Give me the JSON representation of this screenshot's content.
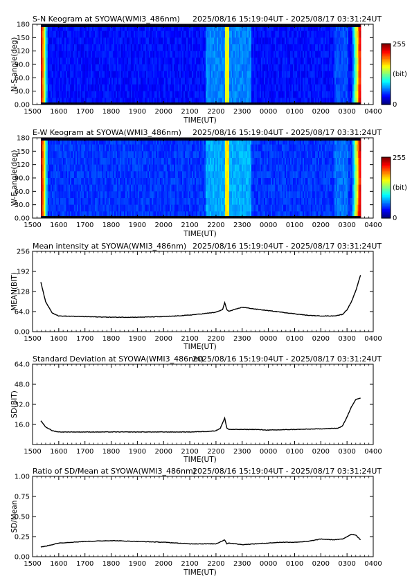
{
  "chart_data": [
    {
      "type": "heatmap",
      "title": "S-N Keogram at SYOWA(WMI3_486nm)",
      "time_range": "2025/08/16 15:19:04UT - 2025/08/17 03:31:24UT",
      "xlabel": "TIME(UT)",
      "ylabel": "N-S angle(deg)",
      "x_ticks": [
        "1500",
        "1600",
        "1700",
        "1800",
        "1900",
        "2000",
        "2100",
        "2200",
        "2300",
        "0000",
        "0100",
        "0200",
        "0300",
        "0400"
      ],
      "y_ticks": [
        "0.00",
        "30.0",
        "60.0",
        "90.0",
        "120",
        "150",
        "180"
      ],
      "ylim": [
        0,
        180
      ],
      "colorbar": {
        "max_label": "255",
        "unit_label": "(bit)",
        "min_label": "0"
      },
      "features": {
        "data_start": "15:19",
        "data_end": "03:31",
        "background_level": 35,
        "bright_band_times": [
          "22:20",
          "22:25"
        ],
        "twilight_edges": [
          "15:19",
          "03:31"
        ]
      }
    },
    {
      "type": "heatmap",
      "title": "E-W Keogram at SYOWA(WMI3_486nm)",
      "time_range": "2025/08/16 15:19:04UT - 2025/08/17 03:31:24UT",
      "xlabel": "TIME(UT)",
      "ylabel": "W-E angle(deg)",
      "x_ticks": [
        "1500",
        "1600",
        "1700",
        "1800",
        "1900",
        "2000",
        "2100",
        "2200",
        "2300",
        "0000",
        "0100",
        "0200",
        "0300",
        "0400"
      ],
      "y_ticks": [
        "0.00",
        "30.0",
        "60.0",
        "90.0",
        "120",
        "150",
        "180"
      ],
      "ylim": [
        0,
        180
      ],
      "colorbar": {
        "max_label": "255",
        "unit_label": "(bit)",
        "min_label": "0"
      },
      "features": {
        "data_start": "15:19",
        "data_end": "03:31",
        "background_level": 45,
        "bright_band_times": [
          "22:20",
          "22:25"
        ],
        "twilight_edges": [
          "15:19",
          "03:31"
        ]
      }
    },
    {
      "type": "line",
      "title": "Mean intensity at SYOWA(WMI3_486nm)",
      "time_range": "2025/08/16 15:19:04UT - 2025/08/17 03:31:24UT",
      "xlabel": "TIME(UT)",
      "ylabel": "MEAN(BIT)",
      "x_ticks": [
        "1500",
        "1600",
        "1700",
        "1800",
        "1900",
        "2000",
        "2100",
        "2200",
        "2300",
        "0000",
        "0100",
        "0200",
        "0300",
        "0400"
      ],
      "y_ticks": [
        "0.00",
        "64.0",
        "128",
        "192",
        "256"
      ],
      "ylim": [
        0,
        256
      ],
      "series": [
        {
          "x": [
            "15:19",
            "15:30",
            "15:45",
            "16:00",
            "16:30",
            "17:00",
            "18:00",
            "19:00",
            "20:00",
            "20:30",
            "21:00",
            "21:30",
            "22:00",
            "22:15",
            "22:20",
            "22:25",
            "22:30",
            "23:00",
            "23:30",
            "00:00",
            "00:30",
            "01:00",
            "01:30",
            "02:00",
            "02:30",
            "02:50",
            "03:00",
            "03:10",
            "03:20",
            "03:31"
          ],
          "y": [
            158,
            95,
            60,
            50,
            49,
            48,
            46,
            46,
            48,
            50,
            53,
            57,
            62,
            70,
            92,
            70,
            65,
            78,
            72,
            67,
            62,
            57,
            52,
            50,
            50,
            55,
            70,
            95,
            130,
            180
          ]
        }
      ]
    },
    {
      "type": "line",
      "title": "Standard Deviation at SYOWA(WMI3_486nm)",
      "time_range": "2025/08/16 15:19:04UT - 2025/08/17 03:31:24UT",
      "xlabel": "TIME(UT)",
      "ylabel": "SD(BIT)",
      "x_ticks": [
        "1500",
        "1600",
        "1700",
        "1800",
        "1900",
        "2000",
        "2100",
        "2200",
        "2300",
        "0000",
        "0100",
        "0200",
        "0300",
        "0400"
      ],
      "y_ticks": [
        "16.0",
        "32.0",
        "48.0",
        "64.0"
      ],
      "ylim": [
        0,
        64
      ],
      "series": [
        {
          "x": [
            "15:19",
            "15:30",
            "15:45",
            "16:00",
            "17:00",
            "18:00",
            "19:00",
            "20:00",
            "21:00",
            "21:45",
            "22:00",
            "22:10",
            "22:20",
            "22:25",
            "22:30",
            "23:00",
            "23:30",
            "00:00",
            "01:00",
            "02:00",
            "02:40",
            "02:50",
            "03:00",
            "03:10",
            "03:20",
            "03:31"
          ],
          "y": [
            19,
            14,
            11,
            10,
            10,
            10,
            10,
            10,
            10,
            10.5,
            11,
            13,
            21,
            13,
            12,
            12,
            12,
            11.5,
            12,
            12.5,
            13,
            15,
            22,
            30,
            36,
            37
          ]
        }
      ]
    },
    {
      "type": "line",
      "title": "Ratio of SD/Mean at SYOWA(WMI3_486nm)",
      "time_range": "2025/08/16 15:19:04UT - 2025/08/17 03:31:24UT",
      "xlabel": "TIME(UT)",
      "ylabel": "SD/Mean",
      "x_ticks": [
        "1500",
        "1600",
        "1700",
        "1800",
        "1900",
        "2000",
        "2100",
        "2200",
        "2300",
        "0000",
        "0100",
        "0200",
        "0300",
        "0400"
      ],
      "y_ticks": [
        "0.00",
        "0.25",
        "0.50",
        "0.75",
        "1.00"
      ],
      "ylim": [
        0,
        1
      ],
      "series": [
        {
          "x": [
            "15:19",
            "15:30",
            "16:00",
            "16:30",
            "17:00",
            "18:00",
            "19:00",
            "20:00",
            "20:30",
            "21:00",
            "21:30",
            "22:00",
            "22:20",
            "22:25",
            "22:30",
            "23:00",
            "23:30",
            "00:00",
            "00:30",
            "01:00",
            "01:30",
            "02:00",
            "02:30",
            "02:50",
            "03:10",
            "03:20",
            "03:31"
          ],
          "y": [
            0.12,
            0.13,
            0.17,
            0.18,
            0.19,
            0.2,
            0.19,
            0.18,
            0.17,
            0.16,
            0.16,
            0.16,
            0.21,
            0.16,
            0.17,
            0.15,
            0.16,
            0.17,
            0.18,
            0.18,
            0.19,
            0.22,
            0.21,
            0.22,
            0.28,
            0.27,
            0.21
          ]
        }
      ]
    }
  ]
}
